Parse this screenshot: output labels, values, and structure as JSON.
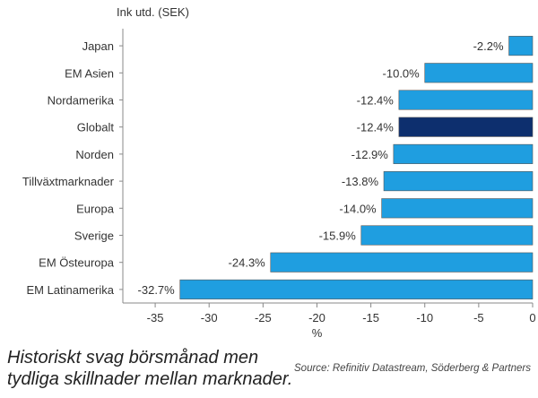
{
  "chart_data": {
    "type": "bar",
    "orientation": "horizontal",
    "title": "",
    "unit_label": "Ink utd. (SEK)",
    "xlabel": "%",
    "ylabel": "",
    "categories": [
      "Japan",
      "EM Asien",
      "Nordamerika",
      "Globalt",
      "Norden",
      "Tillväxtmarknader",
      "Europa",
      "Sverige",
      "EM Östeuropa",
      "EM Latinamerika"
    ],
    "values": [
      -2.2,
      -10.0,
      -12.4,
      -12.4,
      -12.9,
      -13.8,
      -14.0,
      -15.9,
      -24.3,
      -32.7
    ],
    "value_labels": [
      "-2.2%",
      "-10.0%",
      "-12.4%",
      "-12.4%",
      "-12.9%",
      "-13.8%",
      "-14.0%",
      "-15.9%",
      "-24.3%",
      "-32.7%"
    ],
    "xlim": [
      -38,
      0
    ],
    "xticks": [
      -35,
      -30,
      -25,
      -20,
      -15,
      -10,
      -5,
      0
    ],
    "xtick_labels": [
      "-35",
      "-30",
      "-25",
      "-20",
      "-15",
      "-10",
      "-5",
      "0"
    ],
    "grid": false,
    "legend": "none",
    "colors": {
      "bar": "#1f9ee0",
      "highlight": "#0d2f6e",
      "axis": "#888888"
    },
    "highlight_category": "Globalt"
  },
  "caption": "Historiskt svag börsmånad men tydliga skillnader mellan marknader.",
  "source": "Source: Refinitiv Datastream, Söderberg & Partners"
}
